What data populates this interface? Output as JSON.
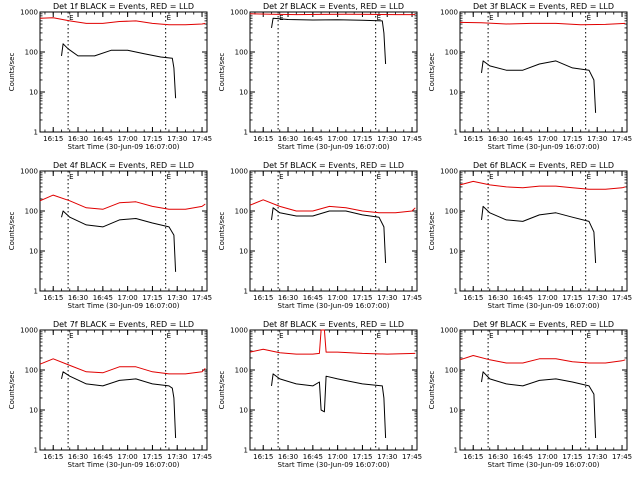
{
  "figure": {
    "background": "#ffffff",
    "axis_color": "#000000"
  },
  "chart_data": {
    "type": "line",
    "y_scale": "log",
    "ylim": [
      1,
      1000
    ],
    "xlim": [
      "16:07:00",
      "17:48:00"
    ],
    "ylabel": "Counts/sec",
    "xlabel": "Start Time (30-Jun-09 16:07:00)",
    "x_ticks": [
      "16:15",
      "16:30",
      "16:45",
      "17:00",
      "17:15",
      "17:30",
      "17:45"
    ],
    "y_ticks": [
      "1",
      "10",
      "100",
      "1000"
    ],
    "markers": {
      "label": "E",
      "times": [
        "16:24:00",
        "17:23:00"
      ]
    },
    "series_colors": {
      "Events": "#000000",
      "LLD": "#e00000"
    },
    "panels": [
      {
        "title": "Det 1f BLACK = Events, RED = LLD",
        "series": [
          {
            "name": "LLD",
            "color": "#e00000",
            "x": [
              "16:07",
              "16:15",
              "16:25",
              "16:35",
              "16:45",
              "16:55",
              "17:05",
              "17:15",
              "17:25",
              "17:35",
              "17:45",
              "17:47"
            ],
            "y": [
              700,
              720,
              600,
              520,
              520,
              580,
              600,
              520,
              480,
              480,
              500,
              520
            ]
          },
          {
            "name": "Events",
            "color": "#000000",
            "x": [
              "16:20",
              "16:21",
              "16:24",
              "16:30",
              "16:40",
              "16:50",
              "17:00",
              "17:10",
              "17:20",
              "17:27",
              "17:28",
              "17:29"
            ],
            "y": [
              80,
              160,
              120,
              80,
              80,
              110,
              110,
              90,
              75,
              70,
              40,
              7
            ]
          }
        ]
      },
      {
        "title": "Det 2f BLACK = Events, RED = LLD",
        "series": [
          {
            "name": "LLD",
            "color": "#e00000",
            "x": [
              "16:07",
              "16:20",
              "16:35",
              "16:50",
              "17:05",
              "17:20",
              "17:35",
              "17:47"
            ],
            "y": [
              900,
              880,
              860,
              870,
              880,
              870,
              860,
              860
            ]
          },
          {
            "name": "Events",
            "color": "#000000",
            "x": [
              "16:20",
              "16:21",
              "16:30",
              "16:45",
              "17:00",
              "17:15",
              "17:27",
              "17:28",
              "17:29"
            ],
            "y": [
              400,
              700,
              650,
              630,
              640,
              620,
              600,
              300,
              50
            ]
          }
        ]
      },
      {
        "title": "Det 3f BLACK = Events, RED = LLD",
        "series": [
          {
            "name": "LLD",
            "color": "#e00000",
            "x": [
              "16:07",
              "16:20",
              "16:35",
              "16:50",
              "17:05",
              "17:20",
              "17:35",
              "17:47"
            ],
            "y": [
              550,
              540,
              500,
              520,
              520,
              480,
              490,
              520
            ]
          },
          {
            "name": "Events",
            "color": "#000000",
            "x": [
              "16:20",
              "16:21",
              "16:25",
              "16:35",
              "16:45",
              "16:55",
              "17:05",
              "17:15",
              "17:25",
              "17:28",
              "17:29"
            ],
            "y": [
              30,
              60,
              45,
              35,
              35,
              50,
              60,
              40,
              35,
              20,
              3
            ]
          }
        ]
      },
      {
        "title": "Det 4f BLACK = Events, RED = LLD",
        "series": [
          {
            "name": "LLD",
            "color": "#e00000",
            "x": [
              "16:07",
              "16:15",
              "16:25",
              "16:35",
              "16:45",
              "16:55",
              "17:05",
              "17:15",
              "17:25",
              "17:35",
              "17:45",
              "17:47"
            ],
            "y": [
              180,
              250,
              180,
              120,
              110,
              160,
              170,
              130,
              110,
              110,
              130,
              150
            ]
          },
          {
            "name": "Events",
            "color": "#000000",
            "x": [
              "16:20",
              "16:21",
              "16:25",
              "16:35",
              "16:45",
              "16:55",
              "17:05",
              "17:15",
              "17:25",
              "17:28",
              "17:29"
            ],
            "y": [
              70,
              100,
              70,
              45,
              40,
              60,
              65,
              50,
              40,
              25,
              3
            ]
          }
        ]
      },
      {
        "title": "Det 5f BLACK = Events, RED = LLD",
        "series": [
          {
            "name": "LLD",
            "color": "#e00000",
            "x": [
              "16:07",
              "16:15",
              "16:25",
              "16:35",
              "16:45",
              "16:55",
              "17:05",
              "17:15",
              "17:25",
              "17:35",
              "17:45",
              "17:47"
            ],
            "y": [
              140,
              190,
              130,
              100,
              100,
              130,
              120,
              100,
              90,
              90,
              100,
              120
            ]
          },
          {
            "name": "Events",
            "color": "#000000",
            "x": [
              "16:20",
              "16:21",
              "16:25",
              "16:35",
              "16:45",
              "16:55",
              "17:05",
              "17:15",
              "17:25",
              "17:28",
              "17:29"
            ],
            "y": [
              60,
              120,
              90,
              75,
              75,
              100,
              100,
              80,
              70,
              40,
              5
            ]
          }
        ]
      },
      {
        "title": "Det 6f BLACK = Events, RED = LLD",
        "series": [
          {
            "name": "LLD",
            "color": "#e00000",
            "x": [
              "16:07",
              "16:15",
              "16:25",
              "16:35",
              "16:45",
              "16:55",
              "17:05",
              "17:15",
              "17:25",
              "17:35",
              "17:45",
              "17:47"
            ],
            "y": [
              450,
              550,
              450,
              400,
              380,
              420,
              420,
              380,
              350,
              350,
              380,
              400
            ]
          },
          {
            "name": "Events",
            "color": "#000000",
            "x": [
              "16:20",
              "16:21",
              "16:25",
              "16:35",
              "16:45",
              "16:55",
              "17:05",
              "17:15",
              "17:25",
              "17:28",
              "17:29"
            ],
            "y": [
              60,
              130,
              90,
              60,
              55,
              80,
              90,
              70,
              55,
              30,
              5
            ]
          }
        ]
      },
      {
        "title": "Det 7f BLACK = Events, RED = LLD",
        "series": [
          {
            "name": "LLD",
            "color": "#e00000",
            "x": [
              "16:07",
              "16:15",
              "16:25",
              "16:35",
              "16:45",
              "16:55",
              "17:05",
              "17:15",
              "17:25",
              "17:35",
              "17:45",
              "17:47"
            ],
            "y": [
              140,
              190,
              130,
              90,
              85,
              120,
              120,
              90,
              80,
              80,
              90,
              110
            ]
          },
          {
            "name": "Events",
            "color": "#000000",
            "x": [
              "16:20",
              "16:21",
              "16:25",
              "16:35",
              "16:45",
              "16:55",
              "17:05",
              "17:15",
              "17:25",
              "17:27",
              "17:28",
              "17:29"
            ],
            "y": [
              60,
              90,
              70,
              45,
              40,
              55,
              60,
              45,
              40,
              35,
              20,
              2
            ]
          }
        ]
      },
      {
        "title": "Det 8f BLACK = Events, RED = LLD",
        "series": [
          {
            "name": "LLD",
            "color": "#e00000",
            "x": [
              "16:07",
              "16:15",
              "16:25",
              "16:35",
              "16:45",
              "16:49",
              "16:50",
              "16:52",
              "16:53",
              "17:00",
              "17:15",
              "17:30",
              "17:47"
            ],
            "y": [
              280,
              330,
              270,
              250,
              250,
              260,
              1000,
              1000,
              280,
              280,
              260,
              250,
              260
            ]
          },
          {
            "name": "Events",
            "color": "#000000",
            "x": [
              "16:20",
              "16:21",
              "16:25",
              "16:35",
              "16:45",
              "16:49",
              "16:50",
              "16:52",
              "16:53",
              "17:00",
              "17:15",
              "17:27",
              "17:28",
              "17:29"
            ],
            "y": [
              40,
              80,
              60,
              45,
              40,
              50,
              10,
              9,
              70,
              60,
              45,
              40,
              20,
              2
            ]
          }
        ]
      },
      {
        "title": "Det 9f BLACK = Events, RED = LLD",
        "series": [
          {
            "name": "LLD",
            "color": "#e00000",
            "x": [
              "16:07",
              "16:15",
              "16:25",
              "16:35",
              "16:45",
              "16:55",
              "17:05",
              "17:15",
              "17:25",
              "17:35",
              "17:45",
              "17:47"
            ],
            "y": [
              180,
              230,
              180,
              150,
              150,
              190,
              190,
              160,
              150,
              150,
              170,
              180
            ]
          },
          {
            "name": "Events",
            "color": "#000000",
            "x": [
              "16:20",
              "16:21",
              "16:25",
              "16:35",
              "16:45",
              "16:55",
              "17:05",
              "17:15",
              "17:25",
              "17:28",
              "17:29"
            ],
            "y": [
              50,
              90,
              60,
              45,
              40,
              55,
              60,
              50,
              40,
              25,
              2
            ]
          }
        ]
      }
    ]
  }
}
